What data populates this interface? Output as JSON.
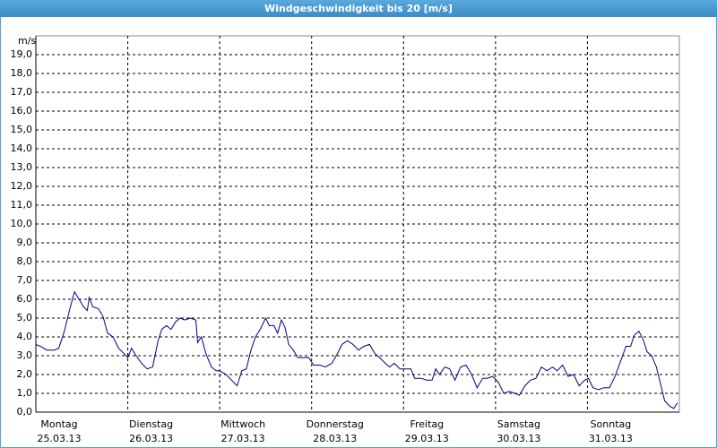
{
  "chart_data": {
    "type": "line",
    "title": "Windgeschwindigkeit bis 20 [m/s]",
    "ylabel": "m/s",
    "xlim": [
      0,
      7
    ],
    "xticks": [
      {
        "value": 0,
        "label": "Montag"
      },
      {
        "value": 1,
        "label": "Dienstag"
      },
      {
        "value": 2,
        "label": "Mittwoch"
      },
      {
        "value": 3,
        "label": "Donnerstag"
      },
      {
        "value": 4,
        "label": "Freitag"
      },
      {
        "value": 5,
        "label": "Samstag"
      },
      {
        "value": 6,
        "label": "Sonntag"
      }
    ],
    "xtick_dates": [
      "25.03.13",
      "26.03.13",
      "27.03.13",
      "28.03.13",
      "29.03.13",
      "30.03.13",
      "31.03.13"
    ],
    "ylim": [
      0,
      20
    ],
    "yticks": [
      {
        "value": 0,
        "label": "0,0"
      },
      {
        "value": 1,
        "label": "1,0"
      },
      {
        "value": 2,
        "label": "2,0"
      },
      {
        "value": 3,
        "label": "3,0"
      },
      {
        "value": 4,
        "label": "4,0"
      },
      {
        "value": 5,
        "label": "5,0"
      },
      {
        "value": 6,
        "label": "6,0"
      },
      {
        "value": 7,
        "label": "7,0"
      },
      {
        "value": 8,
        "label": "8,0"
      },
      {
        "value": 9,
        "label": "9,0"
      },
      {
        "value": 10,
        "label": "10,0"
      },
      {
        "value": 11,
        "label": "11,0"
      },
      {
        "value": 12,
        "label": "12,0"
      },
      {
        "value": 13,
        "label": "13,0"
      },
      {
        "value": 14,
        "label": "14,0"
      },
      {
        "value": 15,
        "label": "15,0"
      },
      {
        "value": 16,
        "label": "16,0"
      },
      {
        "value": 17,
        "label": "17,0"
      },
      {
        "value": 18,
        "label": "18,0"
      },
      {
        "value": 19,
        "label": "19,0"
      }
    ],
    "grid": true,
    "color": "#000080",
    "x": [
      0.0,
      0.05,
      0.12,
      0.2,
      0.25,
      0.31,
      0.37,
      0.42,
      0.47,
      0.52,
      0.56,
      0.58,
      0.62,
      0.68,
      0.73,
      0.78,
      0.84,
      0.9,
      0.96,
      1.0,
      1.04,
      1.09,
      1.15,
      1.21,
      1.27,
      1.33,
      1.37,
      1.42,
      1.47,
      1.52,
      1.57,
      1.62,
      1.68,
      1.74,
      1.76,
      1.8,
      1.85,
      1.91,
      1.96,
      2.0,
      2.07,
      2.13,
      2.19,
      2.24,
      2.29,
      2.34,
      2.39,
      2.44,
      2.5,
      2.54,
      2.59,
      2.63,
      2.67,
      2.71,
      2.75,
      2.8,
      2.85,
      2.91,
      2.97,
      3.02,
      3.09,
      3.15,
      3.22,
      3.28,
      3.33,
      3.39,
      3.45,
      3.51,
      3.57,
      3.63,
      3.69,
      3.74,
      3.8,
      3.85,
      3.9,
      3.96,
      4.01,
      4.08,
      4.12,
      4.19,
      4.25,
      4.31,
      4.35,
      4.39,
      4.45,
      4.5,
      4.56,
      4.62,
      4.68,
      4.74,
      4.8,
      4.86,
      4.91,
      4.97,
      5.03,
      5.09,
      5.15,
      5.21,
      5.26,
      5.32,
      5.38,
      5.44,
      5.5,
      5.56,
      5.62,
      5.67,
      5.73,
      5.79,
      5.85,
      5.91,
      5.97,
      6.01,
      6.06,
      6.12,
      6.18,
      6.24,
      6.3,
      6.36,
      6.42,
      6.47,
      6.51,
      6.56,
      6.61,
      6.65,
      6.7,
      6.75,
      6.8,
      6.84,
      6.9,
      6.94,
      6.98
    ],
    "values": [
      3.6,
      3.5,
      3.3,
      3.3,
      3.4,
      4.3,
      5.5,
      6.4,
      6.0,
      5.6,
      5.4,
      6.1,
      5.6,
      5.5,
      5.1,
      4.2,
      4.0,
      3.4,
      3.1,
      2.9,
      3.4,
      3.0,
      2.6,
      2.3,
      2.4,
      3.8,
      4.4,
      4.6,
      4.4,
      4.8,
      5.0,
      4.9,
      5.0,
      4.9,
      3.7,
      4.0,
      3.1,
      2.4,
      2.2,
      2.2,
      2.0,
      1.7,
      1.4,
      2.2,
      2.3,
      3.3,
      4.0,
      4.4,
      5.0,
      4.6,
      4.6,
      4.2,
      4.9,
      4.5,
      3.6,
      3.3,
      2.9,
      2.9,
      2.9,
      2.5,
      2.5,
      2.4,
      2.6,
      3.1,
      3.6,
      3.8,
      3.6,
      3.3,
      3.5,
      3.6,
      3.1,
      2.9,
      2.6,
      2.4,
      2.6,
      2.3,
      2.3,
      2.3,
      1.8,
      1.8,
      1.7,
      1.7,
      2.3,
      2.0,
      2.4,
      2.3,
      1.7,
      2.4,
      2.5,
      2.0,
      1.3,
      1.8,
      1.8,
      1.9,
      1.6,
      1.0,
      1.1,
      1.0,
      0.9,
      1.4,
      1.7,
      1.8,
      2.4,
      2.2,
      2.4,
      2.2,
      2.5,
      1.9,
      2.0,
      1.4,
      1.7,
      1.8,
      1.3,
      1.2,
      1.3,
      1.3,
      1.9,
      2.7,
      3.5,
      3.5,
      4.1,
      4.3,
      3.8,
      3.2,
      3.0,
      2.4,
      1.4,
      0.6,
      0.3,
      0.2,
      0.5
    ]
  }
}
